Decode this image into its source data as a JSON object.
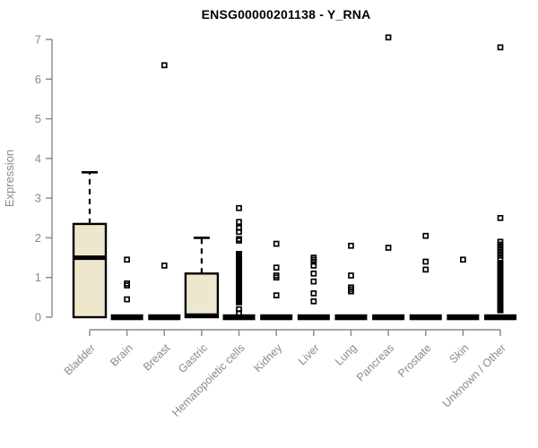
{
  "chart_data": {
    "type": "boxplot",
    "title": "ENSG00000201138 - Y_RNA",
    "ylabel": "Expression",
    "xlabel": "",
    "ylim": [
      0,
      7
    ],
    "yticks": [
      0,
      1,
      2,
      3,
      4,
      5,
      6,
      7
    ],
    "grid": false,
    "legend": "none",
    "categories": [
      "Bladder",
      "Brain",
      "Breast",
      "Gastric",
      "Hematopoietic cells",
      "Kidney",
      "Liver",
      "Lung",
      "Pancreas",
      "Prostate",
      "Skin",
      "Unknown / Other"
    ],
    "colors": {
      "box_fill": "#EDE8CD",
      "box_stroke": "#000000",
      "median": "#000000",
      "whisker": "#000000",
      "outlier": "#000000",
      "axis": "#888888",
      "tick_label": "#8a8a8a",
      "title": "#000000",
      "background": "#ffffff"
    },
    "boxes": [
      {
        "category": "Bladder",
        "q1": 0,
        "median": 1.5,
        "q3": 2.35,
        "whisker_low": 0,
        "whisker_high": 3.65,
        "outliers": []
      },
      {
        "category": "Brain",
        "q1": 0,
        "median": 0,
        "q3": 0,
        "whisker_low": 0,
        "whisker_high": 0,
        "outliers": [
          1.45,
          0.85,
          0.8,
          0.45
        ]
      },
      {
        "category": "Breast",
        "q1": 0,
        "median": 0,
        "q3": 0,
        "whisker_low": 0,
        "whisker_high": 0,
        "outliers": [
          6.35,
          1.3
        ]
      },
      {
        "category": "Gastric",
        "q1": 0,
        "median": 0.04,
        "q3": 1.1,
        "whisker_low": 0,
        "whisker_high": 2.0,
        "outliers": []
      },
      {
        "category": "Hematopoietic cells",
        "q1": 0,
        "median": 0,
        "q3": 0,
        "whisker_low": 0,
        "whisker_high": 0,
        "outliers": [
          2.75,
          2.4,
          2.25,
          2.15,
          1.97,
          1.93,
          0.2,
          0.1
        ],
        "dense_band": [
          0.3,
          1.67
        ]
      },
      {
        "category": "Kidney",
        "q1": 0,
        "median": 0,
        "q3": 0,
        "whisker_low": 0,
        "whisker_high": 0,
        "outliers": [
          1.85,
          1.25,
          1.05,
          1.0,
          0.55
        ]
      },
      {
        "category": "Liver",
        "q1": 0,
        "median": 0,
        "q3": 0,
        "whisker_low": 0,
        "whisker_high": 0,
        "outliers": [
          1.5,
          1.45,
          1.4,
          1.3,
          1.1,
          0.9,
          0.6,
          0.4
        ]
      },
      {
        "category": "Lung",
        "q1": 0,
        "median": 0,
        "q3": 0,
        "whisker_low": 0,
        "whisker_high": 0,
        "outliers": [
          1.8,
          1.05,
          0.75,
          0.7,
          0.65
        ]
      },
      {
        "category": "Pancreas",
        "q1": 0,
        "median": 0,
        "q3": 0,
        "whisker_low": 0,
        "whisker_high": 0,
        "outliers": [
          7.05,
          1.75
        ]
      },
      {
        "category": "Prostate",
        "q1": 0,
        "median": 0,
        "q3": 0,
        "whisker_low": 0,
        "whisker_high": 0,
        "outliers": [
          2.05,
          1.4,
          1.2
        ]
      },
      {
        "category": "Skin",
        "q1": 0,
        "median": 0,
        "q3": 0,
        "whisker_low": 0,
        "whisker_high": 0,
        "outliers": [
          1.45
        ]
      },
      {
        "category": "Unknown / Other",
        "q1": 0,
        "median": 0,
        "q3": 0,
        "whisker_low": 0,
        "whisker_high": 0,
        "outliers": [
          6.8,
          2.5,
          1.9,
          1.83,
          1.76,
          1.69,
          1.62,
          1.55,
          1.48
        ],
        "dense_band": [
          0.1,
          1.42
        ]
      }
    ]
  }
}
